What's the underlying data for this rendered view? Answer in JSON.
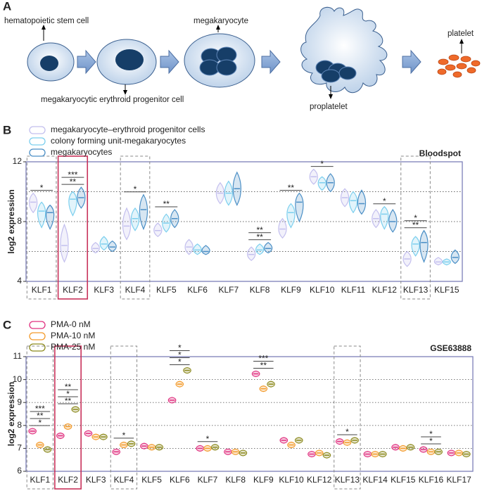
{
  "diagram": {
    "panel_label": "A",
    "labels": {
      "hsc": "hematopoietic stem cell",
      "mep": "megakaryocytic erythroid progenitor cell",
      "mk": "megakaryocyte",
      "proplatelet": "proplatelet",
      "platelet": "platelet"
    }
  },
  "chart_data": [
    {
      "type": "violin",
      "panel_label": "B",
      "title": "Bloodspot",
      "ylabel": "log2 expression",
      "categories": [
        "KLF1",
        "KLF2",
        "KLF3",
        "KLF4",
        "KLF5",
        "KLF6",
        "KLF7",
        "KLF8",
        "KLF9",
        "KLF10",
        "KLF11",
        "KLF12",
        "KLF13",
        "KLF15"
      ],
      "series": [
        {
          "name": "megakaryocyte–erythroid progenitor cells",
          "color": "#c3bfee",
          "values": [
            9.3,
            6.4,
            6.2,
            7.7,
            7.4,
            6.3,
            9.9,
            5.8,
            7.5,
            11.0,
            9.6,
            8.2,
            5.5,
            5.3
          ],
          "lows": [
            8.6,
            5.3,
            5.9,
            6.8,
            7.0,
            5.8,
            9.2,
            5.4,
            6.9,
            10.5,
            9.0,
            7.6,
            5.0,
            5.1
          ],
          "highs": [
            9.9,
            7.8,
            6.6,
            8.9,
            7.9,
            6.8,
            10.6,
            6.3,
            8.2,
            11.5,
            10.2,
            8.8,
            6.0,
            5.6
          ]
        },
        {
          "name": "colony forming unit-megakaryocytes",
          "color": "#7ccfee",
          "values": [
            8.7,
            9.5,
            6.5,
            8.2,
            7.9,
            6.1,
            9.9,
            6.1,
            8.6,
            10.6,
            9.4,
            8.5,
            6.5,
            5.3
          ],
          "lows": [
            7.6,
            8.4,
            6.1,
            7.4,
            7.3,
            5.8,
            9.1,
            5.8,
            7.6,
            10.1,
            8.6,
            7.5,
            5.7,
            5.1
          ],
          "highs": [
            9.3,
            10.0,
            7.0,
            8.9,
            8.5,
            6.5,
            10.7,
            6.5,
            9.2,
            11.0,
            10.0,
            9.0,
            7.0,
            5.5
          ]
        },
        {
          "name": "megakaryocytes",
          "color": "#4b8fc6",
          "values": [
            8.6,
            9.6,
            6.3,
            8.8,
            8.2,
            6.0,
            10.2,
            6.2,
            9.3,
            10.6,
            9.2,
            8.0,
            6.6,
            5.6
          ],
          "lows": [
            7.5,
            8.9,
            6.0,
            7.5,
            7.6,
            5.8,
            9.1,
            5.9,
            8.0,
            10.0,
            8.5,
            7.3,
            5.3,
            5.2
          ],
          "highs": [
            9.1,
            10.3,
            6.7,
            9.8,
            8.8,
            6.4,
            11.3,
            6.6,
            9.9,
            11.2,
            10.1,
            8.8,
            7.4,
            6.1
          ]
        }
      ],
      "ylim": [
        4,
        12
      ],
      "yticks": [
        4,
        8,
        12
      ],
      "grid_lines": [
        6,
        8,
        10
      ],
      "highlighted": [
        "KLF1",
        "KLF4",
        "KLF13"
      ],
      "emphasized": "KLF2",
      "annotations": [
        {
          "category": "KLF1",
          "label": "*"
        },
        {
          "category": "KLF2",
          "label": "**"
        },
        {
          "category": "KLF2",
          "label": "***"
        },
        {
          "category": "KLF4",
          "label": "*"
        },
        {
          "category": "KLF5",
          "label": "**"
        },
        {
          "category": "KLF8",
          "label": "**"
        },
        {
          "category": "KLF8",
          "label": "**"
        },
        {
          "category": "KLF9",
          "label": "**"
        },
        {
          "category": "KLF10",
          "label": "*"
        },
        {
          "category": "KLF12",
          "label": "*"
        },
        {
          "category": "KLF13",
          "label": "**"
        },
        {
          "category": "KLF13",
          "label": "*"
        }
      ]
    },
    {
      "type": "violin",
      "panel_label": "C",
      "title": "GSE63888",
      "ylabel": "log2 expression",
      "categories": [
        "KLF1",
        "KLF2",
        "KLF3",
        "KLF4",
        "KLF5",
        "KLF6",
        "KLF7",
        "KLF8",
        "KLF9",
        "KLF10",
        "KLF12",
        "KLF13",
        "KLF14",
        "KLF15",
        "KLF16",
        "KLF17"
      ],
      "series": [
        {
          "name": "PMA-0 nM",
          "color": "#e0307f",
          "values": [
            7.75,
            7.55,
            7.65,
            6.85,
            7.1,
            9.1,
            7.0,
            6.85,
            10.25,
            7.35,
            6.75,
            7.3,
            6.75,
            7.05,
            6.95,
            6.8
          ]
        },
        {
          "name": "PMA-10 nM",
          "color": "#f39a2a",
          "values": [
            7.15,
            7.95,
            7.5,
            7.15,
            7.05,
            9.8,
            7.0,
            6.85,
            9.6,
            7.15,
            6.8,
            7.25,
            6.75,
            7.0,
            6.85,
            6.8
          ]
        },
        {
          "name": "PMA-25 nM",
          "color": "#8c8a1e",
          "values": [
            6.95,
            8.7,
            7.5,
            7.2,
            7.05,
            10.4,
            7.05,
            6.8,
            9.8,
            7.35,
            6.7,
            7.35,
            6.75,
            7.05,
            6.85,
            6.75
          ]
        }
      ],
      "ylim": [
        6,
        11
      ],
      "yticks": [
        6,
        7,
        8,
        9,
        10,
        11
      ],
      "grid_lines": [
        7,
        8,
        9,
        10
      ],
      "highlighted": [
        "KLF1",
        "KLF4",
        "KLF13"
      ],
      "emphasized": "KLF2",
      "annotations": [
        {
          "category": "KLF1",
          "label": "*"
        },
        {
          "category": "KLF1",
          "label": "**"
        },
        {
          "category": "KLF1",
          "label": "***"
        },
        {
          "category": "KLF2",
          "label": "**"
        },
        {
          "category": "KLF2",
          "label": "*"
        },
        {
          "category": "KLF2",
          "label": "**"
        },
        {
          "category": "KLF4",
          "label": "*"
        },
        {
          "category": "KLF6",
          "label": "*"
        },
        {
          "category": "KLF6",
          "label": "*"
        },
        {
          "category": "KLF6",
          "label": "*"
        },
        {
          "category": "KLF7",
          "label": "*"
        },
        {
          "category": "KLF9",
          "label": "**"
        },
        {
          "category": "KLF9",
          "label": "***"
        },
        {
          "category": "KLF13",
          "label": "*"
        },
        {
          "category": "KLF16",
          "label": "*"
        },
        {
          "category": "KLF16",
          "label": "*"
        }
      ]
    }
  ]
}
